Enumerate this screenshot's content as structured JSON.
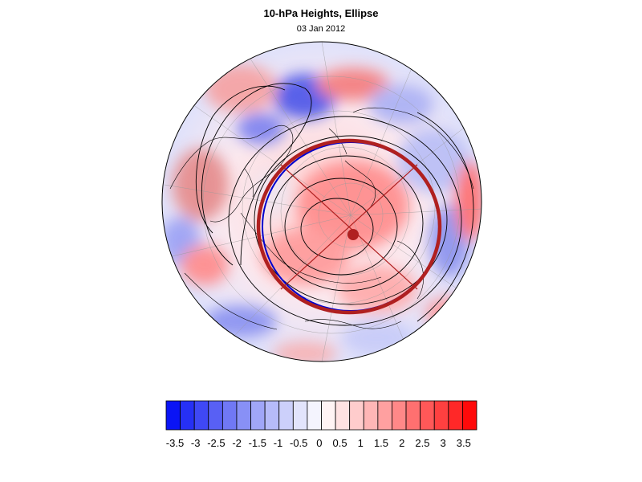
{
  "title": "10-hPa Heights, Ellipse",
  "date": "03 Jan 2012",
  "colorbar": {
    "ticks": [
      "-3.5",
      "-3",
      "-2.5",
      "-2",
      "-1.5",
      "-1",
      "-0.5",
      "0",
      "0.5",
      "1",
      "1.5",
      "2",
      "2.5",
      "3",
      "3.5"
    ],
    "colors": [
      "#0a14f5",
      "#2630f5",
      "#3f48f5",
      "#5860f5",
      "#7078f5",
      "#8890f6",
      "#a0a6f8",
      "#b6bbf9",
      "#ccd0fb",
      "#e2e4fc",
      "#f4f4fe",
      "#fff4f4",
      "#ffe2e2",
      "#ffcccc",
      "#ffb6b6",
      "#ffa0a0",
      "#ff8888",
      "#ff7070",
      "#ff5858",
      "#ff4040",
      "#ff2828",
      "#ff0a0a"
    ]
  },
  "map_features": {
    "ellipse_color": "#b02020",
    "ellipse_outline_color": "#0000cc",
    "contour_color": "#000000"
  }
}
